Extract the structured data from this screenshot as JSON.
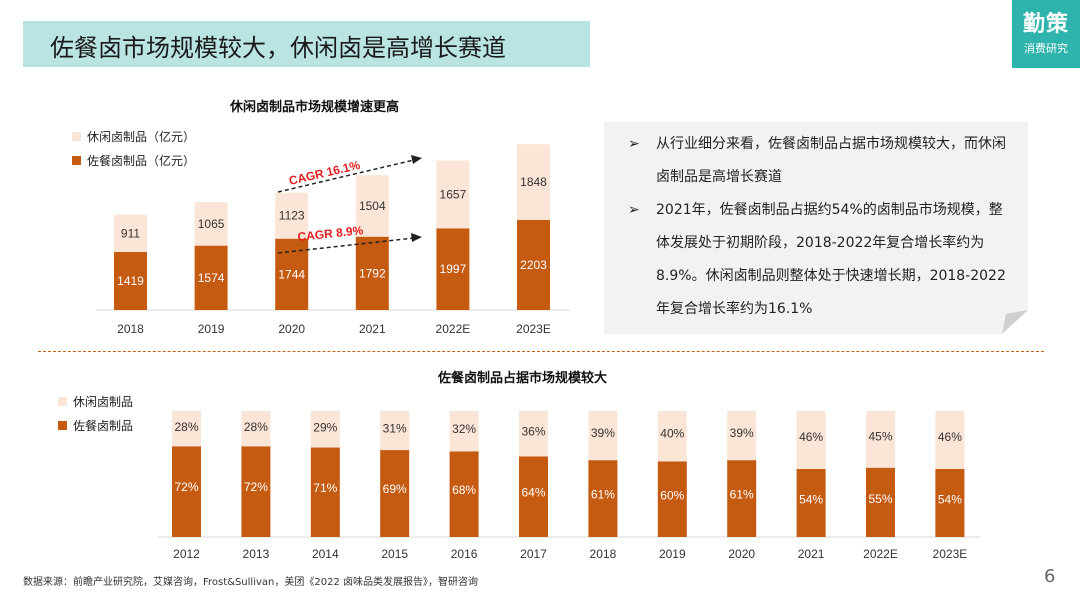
{
  "header": {
    "title": "佐餐卤市场规模较大，休闲卤是高增长赛道"
  },
  "logo": {
    "main": "勤策",
    "sub": "消费研究"
  },
  "chart_data": [
    {
      "type": "stacked-bar",
      "title": "休闲卤制品市场规模增速更高",
      "categories": [
        "2018",
        "2019",
        "2020",
        "2021",
        "2022E",
        "2023E"
      ],
      "series": [
        {
          "name": "佐餐卤制品（亿元）",
          "values": [
            1419,
            1574,
            1744,
            1792,
            1997,
            2203
          ],
          "color": "#c55a11"
        },
        {
          "name": "休闲卤制品（亿元）",
          "values": [
            911,
            1065,
            1123,
            1504,
            1657,
            1848
          ],
          "color": "#fbe5d6"
        }
      ],
      "legend": [
        "休闲卤制品（亿元）",
        "佐餐卤制品（亿元）"
      ],
      "annotations": [
        "CAGR 16.1%",
        "CAGR 8.9%"
      ],
      "ylim": [
        0,
        4200
      ]
    },
    {
      "type": "stacked-bar-100",
      "title": "佐餐卤制品占据市场规模较大",
      "categories": [
        "2012",
        "2013",
        "2014",
        "2015",
        "2016",
        "2017",
        "2018",
        "2019",
        "2020",
        "2021",
        "2022E",
        "2023E"
      ],
      "series": [
        {
          "name": "佐餐卤制品",
          "values": [
            72,
            72,
            71,
            69,
            68,
            64,
            61,
            60,
            61,
            54,
            55,
            54
          ],
          "color": "#c55a11"
        },
        {
          "name": "休闲卤制品",
          "values": [
            28,
            28,
            29,
            31,
            32,
            36,
            39,
            40,
            39,
            46,
            45,
            46
          ],
          "color": "#fbe5d6"
        }
      ],
      "legend": [
        "休闲卤制品",
        "佐餐卤制品"
      ],
      "unit": "%"
    }
  ],
  "info": {
    "bullets": [
      "从行业细分来看，佐餐卤制品占据市场规模较大，而休闲卤制品是高增长赛道",
      "2021年，佐餐卤制品占据约54%的卤制品市场规模，整体发展处于初期阶段，2018-2022年复合增长率约为8.9%。休闲卤制品则整体处于快速增长期，2018-2022年复合增长率约为16.1%"
    ],
    "arrow": "➢"
  },
  "footer": {
    "source": "数据来源：前瞻产业研究院，艾媒咨询，Frost&Sullivan，美团《2022 卤味品类发展报告》，智研咨询"
  },
  "page": {
    "number": "6"
  }
}
